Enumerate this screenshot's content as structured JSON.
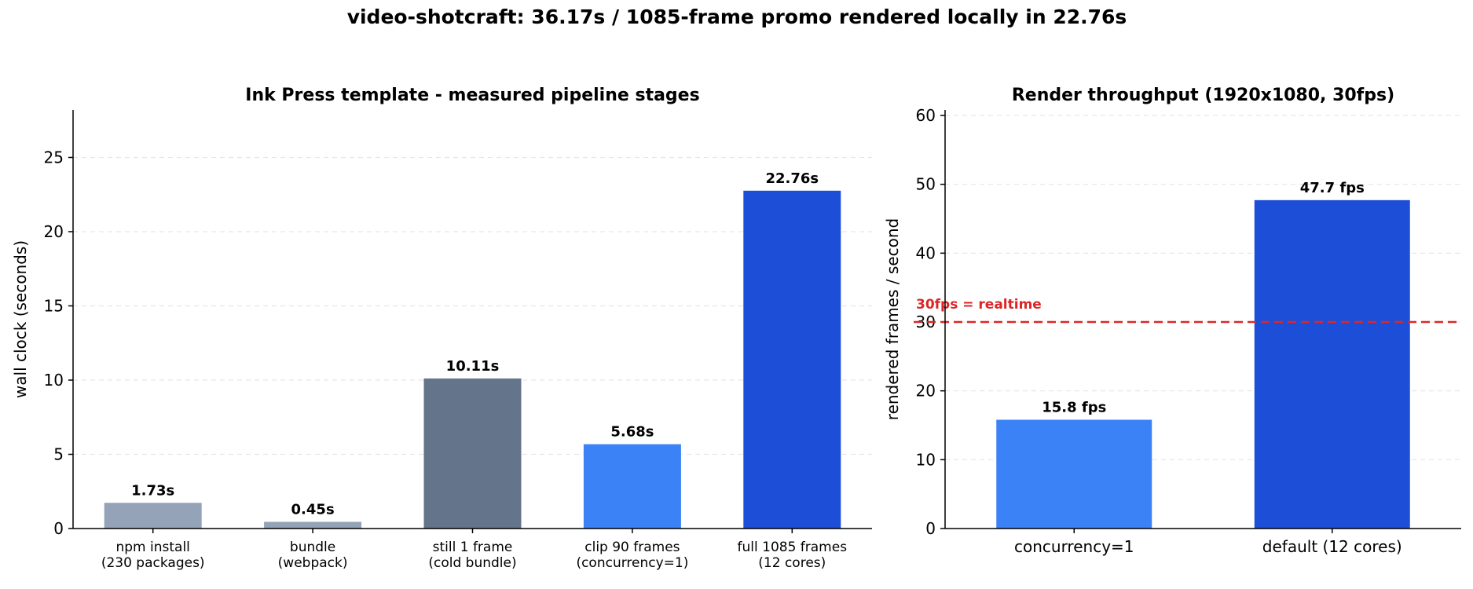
{
  "suptitle": "video-shotcraft: 36.17s / 1085-frame promo rendered locally in 22.76s",
  "chart_data": [
    {
      "type": "bar",
      "title": "Ink Press template - measured pipeline stages",
      "ylabel": "wall clock (seconds)",
      "ylim": [
        0,
        28.2
      ],
      "yticks": [
        0,
        5,
        10,
        15,
        20,
        25
      ],
      "grid": true,
      "categories": [
        [
          "npm install",
          "(230 packages)"
        ],
        [
          "bundle",
          "(webpack)"
        ],
        [
          "still 1 frame",
          "(cold bundle)"
        ],
        [
          "clip 90 frames",
          "(concurrency=1)"
        ],
        [
          "full 1085 frames",
          "(12 cores)"
        ]
      ],
      "values": [
        1.73,
        0.45,
        10.11,
        5.68,
        22.76
      ],
      "value_labels": [
        "1.73s",
        "0.45s",
        "10.11s",
        "5.68s",
        "22.76s"
      ],
      "colors": [
        "#94a3b8",
        "#94a3b8",
        "#64748b",
        "#3b82f6",
        "#1d4ed8"
      ]
    },
    {
      "type": "bar",
      "title": "Render throughput (1920x1080, 30fps)",
      "ylabel": "rendered frames / second",
      "ylim": [
        0,
        60.8
      ],
      "yticks": [
        0,
        10,
        20,
        30,
        40,
        50,
        60
      ],
      "grid": true,
      "categories": [
        [
          "concurrency=1"
        ],
        [
          "default (12 cores)"
        ]
      ],
      "values": [
        15.8,
        47.7
      ],
      "value_labels": [
        "15.8 fps",
        "47.7 fps"
      ],
      "colors": [
        "#3b82f6",
        "#1d4ed8"
      ],
      "reference_line": {
        "value": 30,
        "label": "30fps = realtime",
        "color": "#dc2626"
      }
    }
  ]
}
